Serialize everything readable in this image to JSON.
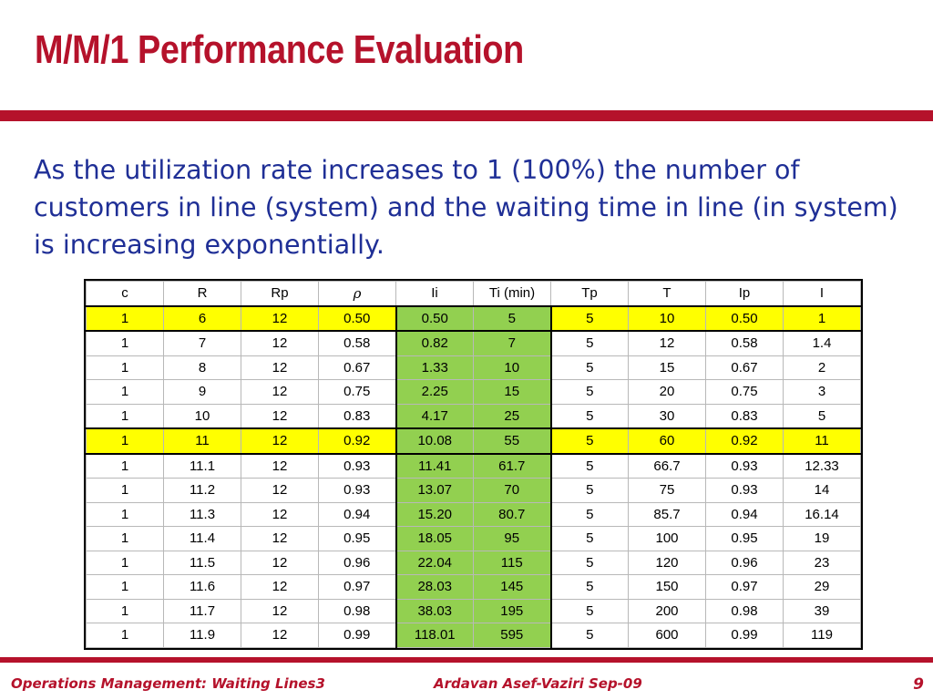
{
  "slide": {
    "title": "M/M/1 Performance Evaluation",
    "body": "As the utilization rate increases to 1 (100%) the number of customers in line (system) and the waiting time in line (in system) is increasing exponentially."
  },
  "table": {
    "headers": [
      "c",
      "R",
      "Rp",
      "ρ",
      "Ii",
      "Ti (min)",
      "Tp",
      "T",
      "Ip",
      "I"
    ],
    "rows": [
      [
        "1",
        "6",
        "12",
        "0.50",
        "0.50",
        "5",
        "5",
        "10",
        "0.50",
        "1"
      ],
      [
        "1",
        "7",
        "12",
        "0.58",
        "0.82",
        "7",
        "5",
        "12",
        "0.58",
        "1.4"
      ],
      [
        "1",
        "8",
        "12",
        "0.67",
        "1.33",
        "10",
        "5",
        "15",
        "0.67",
        "2"
      ],
      [
        "1",
        "9",
        "12",
        "0.75",
        "2.25",
        "15",
        "5",
        "20",
        "0.75",
        "3"
      ],
      [
        "1",
        "10",
        "12",
        "0.83",
        "4.17",
        "25",
        "5",
        "30",
        "0.83",
        "5"
      ],
      [
        "1",
        "11",
        "12",
        "0.92",
        "10.08",
        "55",
        "5",
        "60",
        "0.92",
        "11"
      ],
      [
        "1",
        "11.1",
        "12",
        "0.93",
        "11.41",
        "61.7",
        "5",
        "66.7",
        "0.93",
        "12.33"
      ],
      [
        "1",
        "11.2",
        "12",
        "0.93",
        "13.07",
        "70",
        "5",
        "75",
        "0.93",
        "14"
      ],
      [
        "1",
        "11.3",
        "12",
        "0.94",
        "15.20",
        "80.7",
        "5",
        "85.7",
        "0.94",
        "16.14"
      ],
      [
        "1",
        "11.4",
        "12",
        "0.95",
        "18.05",
        "95",
        "5",
        "100",
        "0.95",
        "19"
      ],
      [
        "1",
        "11.5",
        "12",
        "0.96",
        "22.04",
        "115",
        "5",
        "120",
        "0.96",
        "23"
      ],
      [
        "1",
        "11.6",
        "12",
        "0.97",
        "28.03",
        "145",
        "5",
        "150",
        "0.97",
        "29"
      ],
      [
        "1",
        "11.7",
        "12",
        "0.98",
        "38.03",
        "195",
        "5",
        "200",
        "0.98",
        "39"
      ],
      [
        "1",
        "11.9",
        "12",
        "0.99",
        "118.01",
        "595",
        "5",
        "600",
        "0.99",
        "119"
      ]
    ],
    "highlighted_rows": [
      0,
      5
    ],
    "highlight_color": "#ffff00",
    "green_columns": [
      4,
      5
    ],
    "green_color": "#92d050"
  },
  "footer": {
    "left": "Operations Management: Waiting Lines3",
    "middle": "Ardavan Asef-Vaziri   Sep-09",
    "page": "9"
  },
  "colors": {
    "accent": "#b5122b",
    "body_text": "#1f2f96"
  }
}
